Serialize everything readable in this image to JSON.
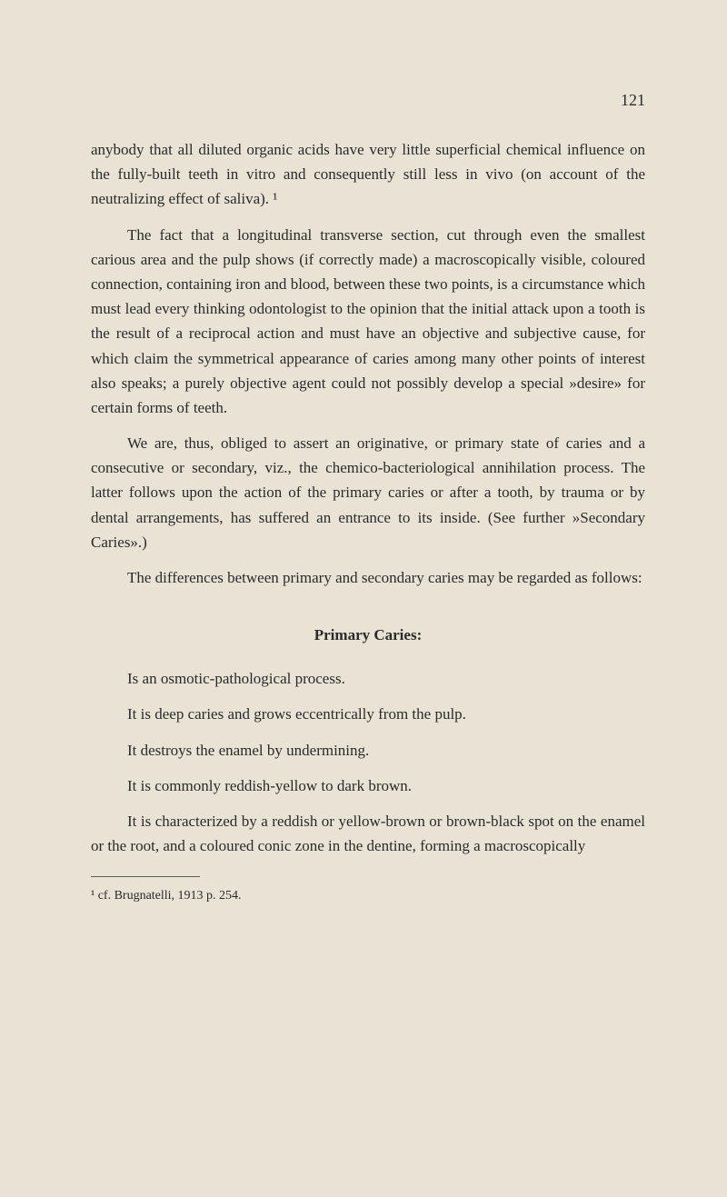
{
  "page_number": "121",
  "paragraphs": {
    "p1": "anybody that all diluted organic acids have very little superficial chemical influence on the fully-built teeth in vitro and consequently still less in vivo (on account of the neutralizing effect of saliva). ¹",
    "p2": "The fact that a longitudinal transverse section, cut through even the smallest carious area and the pulp shows (if correctly made) a macroscopically visible, coloured connection, containing iron and blood, between these two points, is a circumstance which must lead every thinking odontologist to the opinion that the initial attack upon a tooth is the result of a reciprocal action and must have an objective and subjective cause, for which claim the symmetrical appearance of caries among many other points of interest also speaks; a purely objective agent could not possibly develop a special »desire» for certain forms of teeth.",
    "p3": "We are, thus, obliged to assert an originative, or primary state of caries and a consecutive or secondary, viz., the chemico-bacteriological annihilation process. The latter follows upon the action of the primary caries or after a tooth, by trauma or by dental arrangements, has suffered an entrance to its inside. (See further »Secondary Caries».)",
    "p4": "The differences between primary and secondary caries may be regarded as follows:"
  },
  "section_heading": "Primary Caries:",
  "list_paragraphs": {
    "lp1": "Is an osmotic-pathological process.",
    "lp2": "It is deep caries and grows eccentrically from the pulp.",
    "lp3": "It destroys the enamel by undermining.",
    "lp4": "It is commonly reddish-yellow to dark brown.",
    "lp5": "It is characterized by a reddish or yellow-brown or brown-black spot on the enamel or the root, and a coloured conic zone in the dentine, forming a macroscopically"
  },
  "footnote": "¹ cf. Brugnatelli, 1913 p. 254.",
  "colors": {
    "background": "#e8e3d5",
    "text": "#2a2a2a",
    "separator": "#5a5a5a"
  },
  "typography": {
    "body_fontsize": 17,
    "heading_fontsize": 17,
    "footnote_fontsize": 14,
    "line_height": 1.6,
    "font_family": "Georgia, Times New Roman, serif"
  }
}
